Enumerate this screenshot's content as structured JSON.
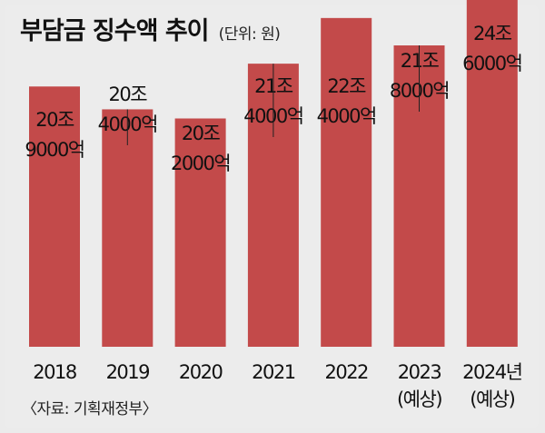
{
  "title": "부담금 징수액 추이",
  "unit_note": "(단위: 원)",
  "source": "〈자료: 기획재정부〉",
  "colors": {
    "bar": "#c34a4a",
    "background": "#ececec",
    "text": "#111111",
    "leader": "#222222"
  },
  "chart_data": {
    "type": "bar",
    "categories": [
      "2018",
      "2019",
      "2020",
      "2021",
      "2022",
      "2023",
      "2024"
    ],
    "category_labels": [
      [
        "2018"
      ],
      [
        "2019"
      ],
      [
        "2020"
      ],
      [
        "2021"
      ],
      [
        "2022"
      ],
      [
        "2023",
        "(예상)"
      ],
      [
        "2024년",
        "(예상)"
      ]
    ],
    "values": [
      20.9,
      20.4,
      20.2,
      21.4,
      22.4,
      21.8,
      24.6
    ],
    "value_unit": "조 원",
    "data_labels": [
      [
        "20조",
        "9000억"
      ],
      [
        "20조",
        "4000억"
      ],
      [
        "20조",
        "2000억"
      ],
      [
        "21조",
        "4000억"
      ],
      [
        "22조",
        "4000억"
      ],
      [
        "21조",
        "8000억"
      ],
      [
        "24조",
        "6000억"
      ]
    ],
    "title": "부담금 징수액 추이",
    "xlabel": "",
    "ylabel": "",
    "grid": false,
    "legend": "none"
  }
}
